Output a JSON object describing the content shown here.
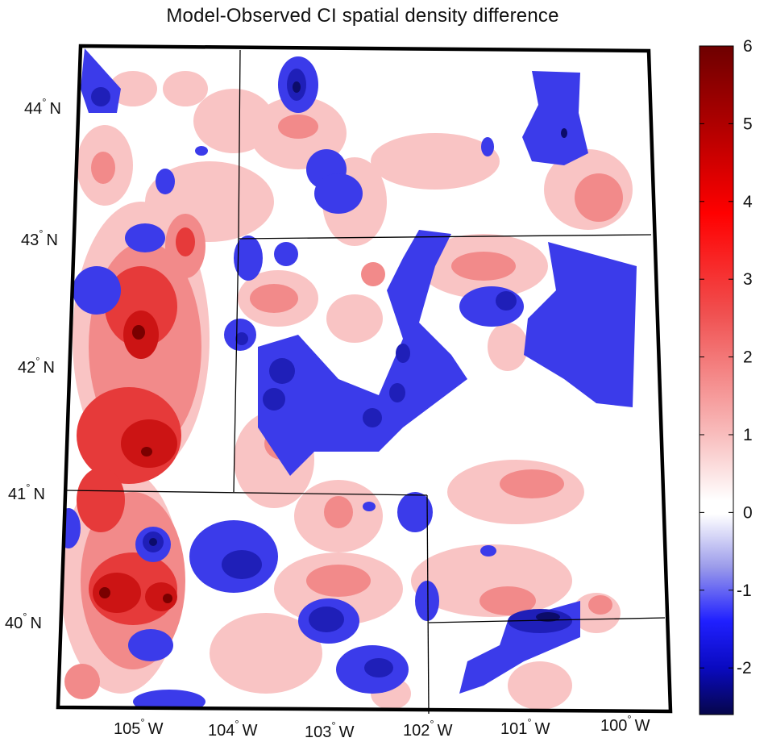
{
  "title": "Model-Observed CI spatial density difference",
  "lat_labels": [
    {
      "deg": "44",
      "hemi": "N"
    },
    {
      "deg": "43",
      "hemi": "N"
    },
    {
      "deg": "42",
      "hemi": "N"
    },
    {
      "deg": "41",
      "hemi": "N"
    },
    {
      "deg": "40",
      "hemi": "N"
    }
  ],
  "lon_labels": [
    {
      "deg": "105",
      "hemi": "W"
    },
    {
      "deg": "104",
      "hemi": "W"
    },
    {
      "deg": "103",
      "hemi": "W"
    },
    {
      "deg": "102",
      "hemi": "W"
    },
    {
      "deg": "101",
      "hemi": "W"
    },
    {
      "deg": "100",
      "hemi": "W"
    }
  ],
  "colorbar": {
    "min": -2.6,
    "max": 6,
    "ticks": [
      "6",
      "5",
      "4",
      "3",
      "2",
      "1",
      "0",
      "-1",
      "-2"
    ],
    "colors": {
      "high": "#6e0000",
      "mid_high": "#ff1a1a",
      "zero": "#ffffff",
      "mid_low": "#1a1aff",
      "low": "#0a0a5a"
    }
  },
  "field_colors": {
    "pos1": "#f9c4c4",
    "pos2": "#f28a8a",
    "pos3": "#e63a3a",
    "pos4": "#cc1414",
    "pos5": "#7a0000",
    "neg1": "#3b3bea",
    "neg2": "#1f1fb8",
    "neg3": "#0c0c6a"
  }
}
